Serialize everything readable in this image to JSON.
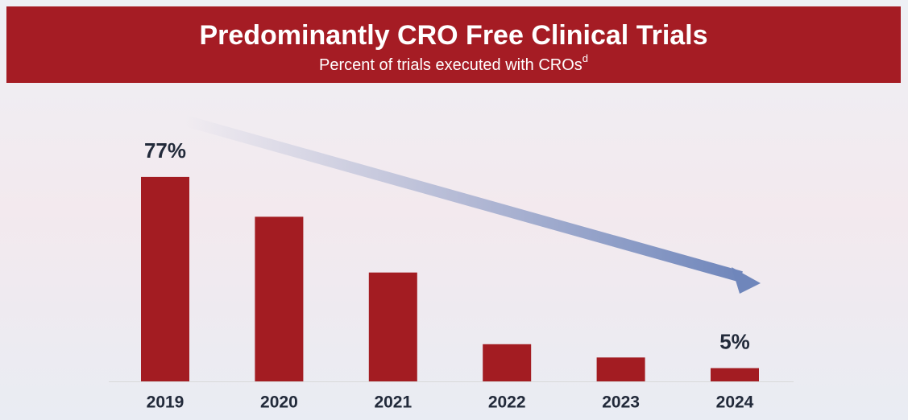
{
  "chart_data": {
    "type": "bar",
    "title": "Predominantly CRO Free Clinical Trials",
    "subtitle": "Percent of trials executed with CROs",
    "subtitle_note": "d",
    "categories": [
      "2019",
      "2020",
      "2021",
      "2022",
      "2023",
      "2024"
    ],
    "values": [
      77,
      62,
      41,
      14,
      9,
      5
    ],
    "value_labels": [
      "77%",
      null,
      null,
      null,
      null,
      "5%"
    ],
    "color": "#a31c22"
  }
}
